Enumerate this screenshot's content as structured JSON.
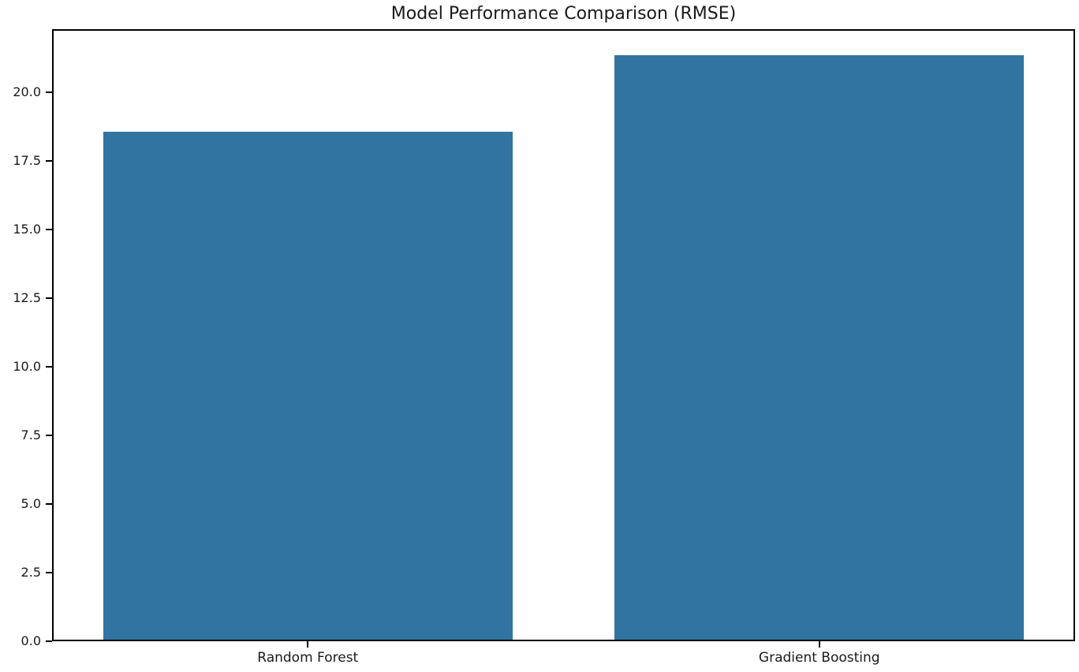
{
  "chart_data": {
    "type": "bar",
    "title": "Model Performance Comparison (RMSE)",
    "categories": [
      "Random Forest",
      "Gradient Boosting"
    ],
    "values": [
      18.5,
      21.3
    ],
    "xlabel": "",
    "ylabel": "",
    "ylim": [
      0,
      22.3
    ],
    "yticks": [
      0.0,
      2.5,
      5.0,
      7.5,
      10.0,
      12.5,
      15.0,
      17.5,
      20.0
    ],
    "ytick_label_format": "one-decimal",
    "bar_color": "#3274a1",
    "bar_width_fraction": 0.8,
    "grid": false,
    "legend": null,
    "background_color": "#ffffff",
    "spine_color": "#000000",
    "text_color": "#1a1a1a"
  }
}
